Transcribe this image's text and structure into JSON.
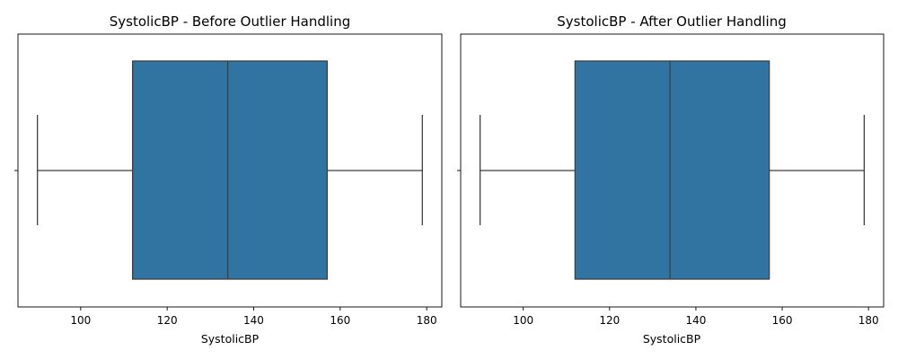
{
  "chart_data": [
    {
      "type": "box",
      "title": "SystolicBP - Before Outlier Handling",
      "xlabel": "SystolicBP",
      "ylabel": "",
      "xlim": [
        85.5,
        183.5
      ],
      "xticks": [
        100,
        120,
        140,
        160,
        180
      ],
      "tick_labels": [
        "100",
        "120",
        "140",
        "160",
        "180"
      ],
      "box": {
        "whisker_low": 90,
        "q1": 112,
        "median": 134,
        "q3": 157,
        "whisker_high": 179
      },
      "color": "#3274a1"
    },
    {
      "type": "box",
      "title": "SystolicBP - After Outlier Handling",
      "xlabel": "SystolicBP",
      "ylabel": "",
      "xlim": [
        85.5,
        183.5
      ],
      "xticks": [
        100,
        120,
        140,
        160,
        180
      ],
      "tick_labels": [
        "100",
        "120",
        "140",
        "160",
        "180"
      ],
      "box": {
        "whisker_low": 90,
        "q1": 112,
        "median": 134,
        "q3": 157,
        "whisker_high": 179
      },
      "color": "#3274a1"
    }
  ]
}
